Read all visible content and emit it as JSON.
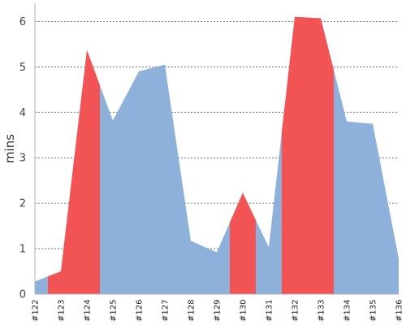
{
  "chart_data": {
    "type": "area",
    "title": "",
    "xlabel": "",
    "ylabel": "mins",
    "categories": [
      "#122",
      "#123",
      "#124",
      "#125",
      "#126",
      "#127",
      "#128",
      "#129",
      "#130",
      "#131",
      "#132",
      "#133",
      "#134",
      "#135",
      "#136"
    ],
    "values": [
      0.28,
      0.5,
      5.37,
      3.82,
      4.9,
      5.05,
      1.17,
      0.92,
      2.23,
      1.03,
      6.1,
      6.07,
      3.8,
      3.75,
      0.78
    ],
    "highlight_ranges": [
      [
        0.5,
        2.5
      ],
      [
        7.5,
        8.5
      ],
      [
        9.5,
        11.5
      ]
    ],
    "ylim": [
      0,
      6.4
    ],
    "yticks": [
      0,
      1,
      2,
      3,
      4,
      5,
      6
    ],
    "grid": true,
    "colors": {
      "base": "#8db1da",
      "highlight": "#f25456"
    }
  }
}
